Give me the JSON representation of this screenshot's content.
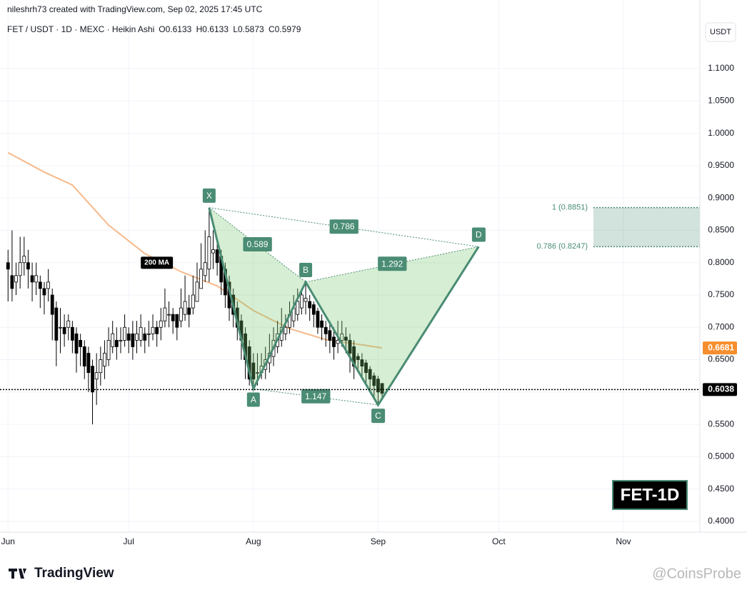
{
  "header": {
    "author_line": "nileshrh73 created with TradingView.com, Sep 02, 2025 17:45 UTC",
    "symbol": "FET / USDT · 1D · MEXC · Heikin Ashi",
    "ohlc_labels": [
      "O0.6133",
      "H0.6133",
      "L0.5873",
      "C0.5979"
    ],
    "currency": "USDT"
  },
  "branding": {
    "logo": "TradingView",
    "watermark": "@CoinsProbe",
    "badge": "FET-1D"
  },
  "chart_data": {
    "type": "candlestick",
    "xlim": [
      -2,
      172
    ],
    "ylim": [
      0.3834,
      1.1729
    ],
    "xticks": [
      {
        "value": 0,
        "label": "Jun"
      },
      {
        "value": 30,
        "label": "Jul"
      },
      {
        "value": 61,
        "label": "Aug"
      },
      {
        "value": 92,
        "label": "Sep"
      },
      {
        "value": 122,
        "label": "Oct"
      },
      {
        "value": 153,
        "label": "Nov"
      }
    ],
    "yticks": [
      {
        "value": 0.4,
        "label": "0.4000"
      },
      {
        "value": 0.45,
        "label": "0.4500"
      },
      {
        "value": 0.5,
        "label": "0.5000"
      },
      {
        "value": 0.55,
        "label": "0.5500"
      },
      {
        "value": 0.6,
        "label": "0.6000"
      },
      {
        "value": 0.65,
        "label": "0.6500"
      },
      {
        "value": 0.7,
        "label": "0.7000"
      },
      {
        "value": 0.75,
        "label": "0.7500"
      },
      {
        "value": 0.8,
        "label": "0.8000"
      },
      {
        "value": 0.85,
        "label": "0.8500"
      },
      {
        "value": 0.9,
        "label": "0.9000"
      },
      {
        "value": 0.95,
        "label": "0.9500"
      },
      {
        "value": 1.0,
        "label": "1.0000"
      },
      {
        "value": 1.05,
        "label": "1.0500"
      },
      {
        "value": 1.1,
        "label": "1.1000"
      }
    ],
    "grid": true,
    "candles": {
      "open": [
        0.8,
        0.78,
        0.77,
        0.78,
        0.8,
        0.8,
        0.78,
        0.77,
        0.77,
        0.76,
        0.76,
        0.75,
        0.73,
        0.7,
        0.7,
        0.7,
        0.7,
        0.69,
        0.68,
        0.67,
        0.66,
        0.64,
        0.62,
        0.63,
        0.64,
        0.65,
        0.67,
        0.68,
        0.68,
        0.68,
        0.69,
        0.69,
        0.68,
        0.68,
        0.69,
        0.69,
        0.69,
        0.7,
        0.7,
        0.71,
        0.72,
        0.72,
        0.72,
        0.71,
        0.72,
        0.73,
        0.73,
        0.74,
        0.76,
        0.78,
        0.79,
        0.815,
        0.82,
        0.81,
        0.79,
        0.77,
        0.75,
        0.73,
        0.71,
        0.69,
        0.67,
        0.645,
        0.63,
        0.63,
        0.635,
        0.645,
        0.655,
        0.67,
        0.68,
        0.69,
        0.7,
        0.71,
        0.72,
        0.73,
        0.74,
        0.74,
        0.735,
        0.725,
        0.71,
        0.7,
        0.695,
        0.685,
        0.675,
        0.68,
        0.685,
        0.68,
        0.67,
        0.655,
        0.65,
        0.645,
        0.635,
        0.625,
        0.62,
        0.6133
      ],
      "high": [
        0.82,
        0.85,
        0.8,
        0.84,
        0.84,
        0.82,
        0.8,
        0.8,
        0.78,
        0.77,
        0.79,
        0.76,
        0.74,
        0.73,
        0.72,
        0.72,
        0.71,
        0.7,
        0.69,
        0.68,
        0.67,
        0.65,
        0.66,
        0.67,
        0.68,
        0.7,
        0.71,
        0.7,
        0.7,
        0.72,
        0.7,
        0.71,
        0.71,
        0.72,
        0.7,
        0.71,
        0.72,
        0.71,
        0.73,
        0.76,
        0.74,
        0.73,
        0.72,
        0.76,
        0.78,
        0.75,
        0.78,
        0.8,
        0.83,
        0.85,
        0.885,
        0.85,
        0.83,
        0.82,
        0.8,
        0.78,
        0.76,
        0.74,
        0.72,
        0.7,
        0.68,
        0.66,
        0.66,
        0.66,
        0.67,
        0.69,
        0.7,
        0.71,
        0.73,
        0.72,
        0.74,
        0.75,
        0.76,
        0.76,
        0.77,
        0.75,
        0.74,
        0.73,
        0.72,
        0.71,
        0.71,
        0.7,
        0.71,
        0.71,
        0.7,
        0.69,
        0.68,
        0.66,
        0.66,
        0.65,
        0.64,
        0.63,
        0.625,
        0.6133
      ],
      "low": [
        0.74,
        0.74,
        0.75,
        0.76,
        0.78,
        0.76,
        0.74,
        0.75,
        0.73,
        0.72,
        0.74,
        0.68,
        0.64,
        0.66,
        0.67,
        0.68,
        0.66,
        0.63,
        0.64,
        0.62,
        0.6,
        0.55,
        0.58,
        0.61,
        0.62,
        0.64,
        0.66,
        0.65,
        0.66,
        0.67,
        0.66,
        0.65,
        0.66,
        0.67,
        0.66,
        0.67,
        0.68,
        0.67,
        0.68,
        0.7,
        0.7,
        0.69,
        0.68,
        0.7,
        0.71,
        0.7,
        0.72,
        0.74,
        0.76,
        0.77,
        0.77,
        0.79,
        0.78,
        0.75,
        0.73,
        0.71,
        0.7,
        0.68,
        0.65,
        0.62,
        0.61,
        0.605,
        0.61,
        0.62,
        0.62,
        0.63,
        0.64,
        0.66,
        0.67,
        0.68,
        0.69,
        0.7,
        0.71,
        0.72,
        0.72,
        0.71,
        0.7,
        0.69,
        0.68,
        0.67,
        0.66,
        0.65,
        0.66,
        0.67,
        0.66,
        0.63,
        0.62,
        0.63,
        0.62,
        0.61,
        0.6,
        0.59,
        0.58,
        0.5873
      ],
      "close": [
        0.79,
        0.76,
        0.78,
        0.8,
        0.81,
        0.79,
        0.77,
        0.78,
        0.76,
        0.75,
        0.77,
        0.72,
        0.68,
        0.7,
        0.69,
        0.71,
        0.68,
        0.66,
        0.67,
        0.64,
        0.63,
        0.6,
        0.63,
        0.65,
        0.66,
        0.68,
        0.69,
        0.67,
        0.68,
        0.7,
        0.68,
        0.67,
        0.69,
        0.7,
        0.68,
        0.69,
        0.7,
        0.69,
        0.71,
        0.73,
        0.72,
        0.71,
        0.7,
        0.73,
        0.74,
        0.72,
        0.75,
        0.77,
        0.79,
        0.8,
        0.84,
        0.82,
        0.8,
        0.77,
        0.75,
        0.73,
        0.72,
        0.7,
        0.68,
        0.65,
        0.62,
        0.62,
        0.63,
        0.64,
        0.65,
        0.66,
        0.68,
        0.69,
        0.7,
        0.7,
        0.72,
        0.73,
        0.74,
        0.75,
        0.745,
        0.73,
        0.72,
        0.7,
        0.7,
        0.69,
        0.68,
        0.67,
        0.68,
        0.69,
        0.68,
        0.66,
        0.64,
        0.65,
        0.64,
        0.63,
        0.62,
        0.61,
        0.6,
        0.5979
      ]
    },
    "ma": {
      "name": "200 MA",
      "color": "#f7b98a",
      "x": [
        0,
        9,
        16,
        25,
        34,
        43,
        52,
        61,
        70,
        79,
        88,
        93
      ],
      "values": [
        0.97,
        0.94,
        0.92,
        0.858,
        0.814,
        0.786,
        0.764,
        0.726,
        0.698,
        0.681,
        0.673,
        0.6681
      ],
      "label_color": "#f68e2e"
    },
    "price_line": 0.6038,
    "pattern": {
      "color": "#4a8c74",
      "points": {
        "labels": [
          "X",
          "A",
          "B",
          "C",
          "D"
        ],
        "x": [
          50,
          61,
          74,
          92,
          117
        ],
        "values": [
          0.885,
          0.605,
          0.77,
          0.58,
          0.8247
        ]
      },
      "ratios": [
        0.589,
        0.786,
        1.147,
        1.292
      ]
    },
    "fib_levels": {
      "values": [
        0.8851,
        0.8247
      ],
      "value_labels": [
        "1 (0.8851)",
        "0.786 (0.8247)"
      ]
    }
  }
}
